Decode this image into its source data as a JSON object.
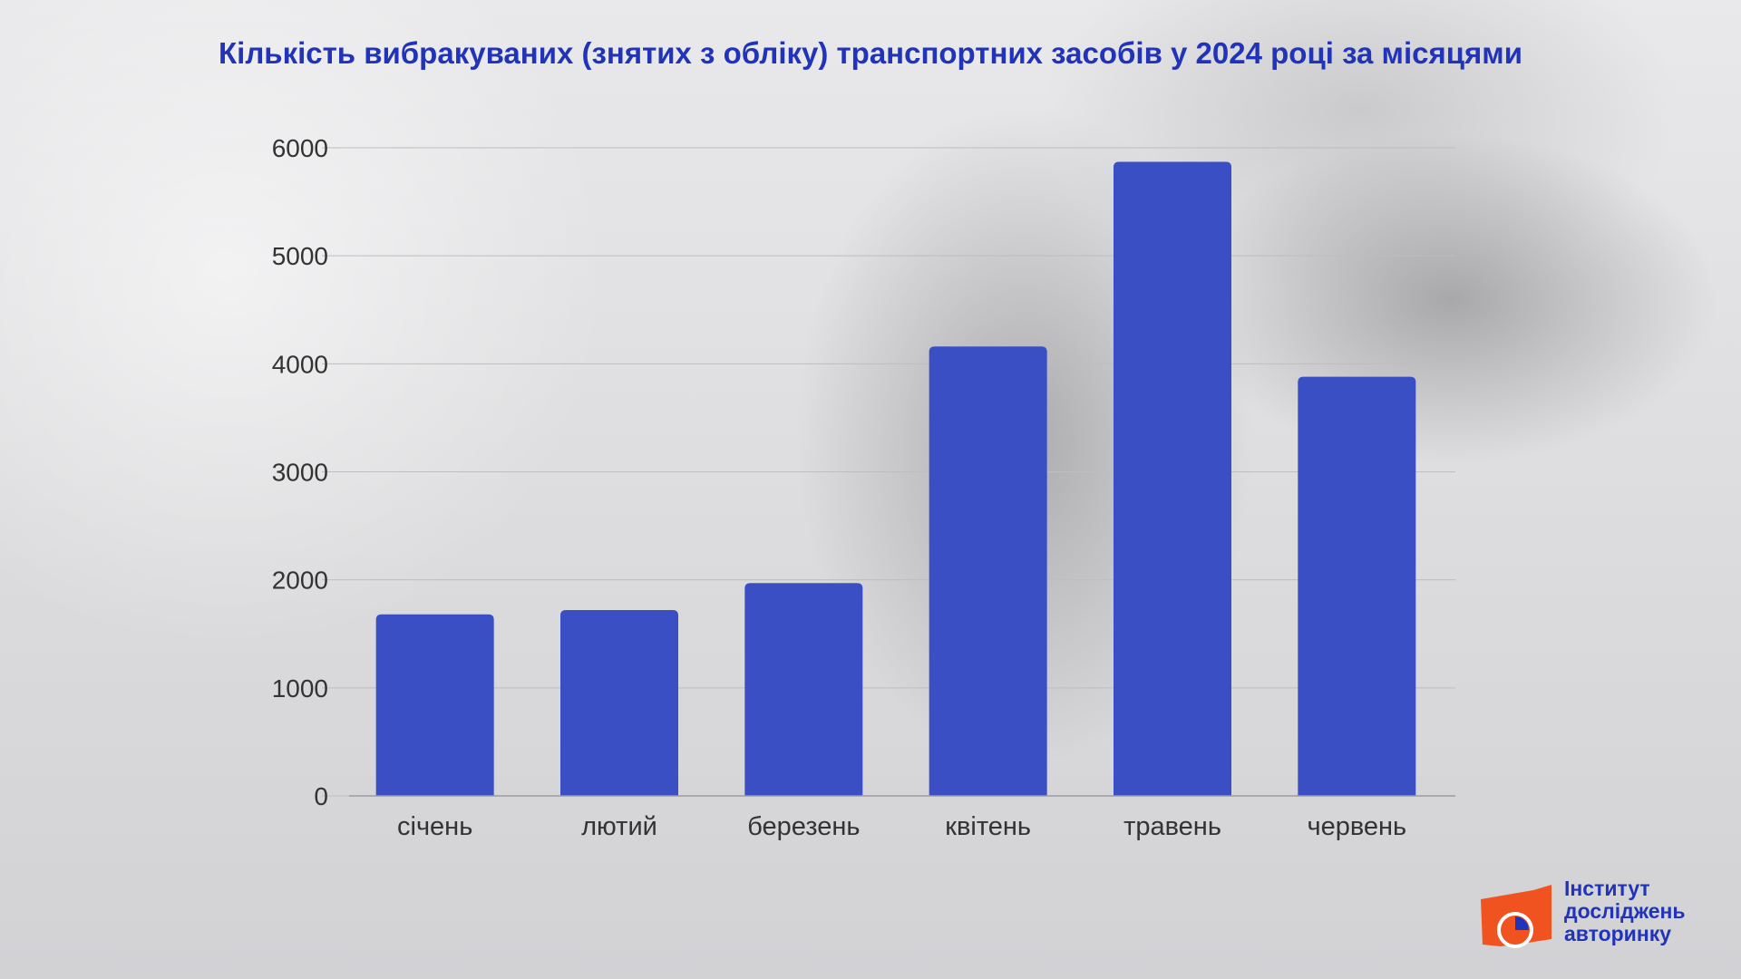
{
  "title": "Кількість вибракуваних (знятих з обліку) транспортних засобів у 2024 році за місяцями",
  "colors": {
    "bar": "#3a4fc4",
    "title": "#2133b8",
    "logo_orange": "#f0531f",
    "grid": "#bdbdc2",
    "tick_text": "#333333"
  },
  "chart_data": {
    "type": "bar",
    "title": "Кількість вибракуваних (знятих з обліку) транспортних засобів у 2024 році за місяцями",
    "categories": [
      "січень",
      "лютий",
      "березень",
      "квітень",
      "травень",
      "червень"
    ],
    "values": [
      1680,
      1720,
      1970,
      4160,
      5870,
      3880
    ],
    "xlabel": "",
    "ylabel": "",
    "ylim": [
      0,
      6000
    ],
    "yticks": [
      0,
      1000,
      2000,
      3000,
      4000,
      5000,
      6000
    ],
    "grid": true,
    "legend": "none"
  },
  "logo": {
    "line1": "Інститут",
    "line2": "досліджень",
    "line3": "авторинку",
    "icon": "clock-pie-icon"
  }
}
